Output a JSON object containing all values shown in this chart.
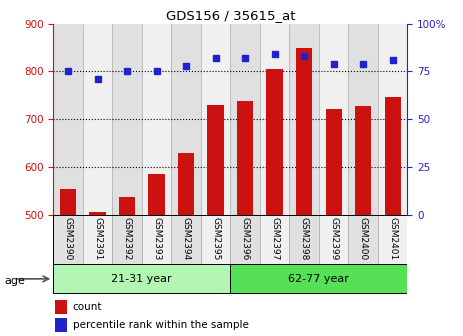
{
  "title": "GDS156 / 35615_at",
  "samples": [
    "GSM2390",
    "GSM2391",
    "GSM2392",
    "GSM2393",
    "GSM2394",
    "GSM2395",
    "GSM2396",
    "GSM2397",
    "GSM2398",
    "GSM2399",
    "GSM2400",
    "GSM2401"
  ],
  "counts": [
    555,
    507,
    537,
    585,
    630,
    730,
    738,
    805,
    848,
    722,
    728,
    746
  ],
  "percentiles": [
    75,
    71,
    75,
    75,
    78,
    82,
    82,
    84,
    83,
    79,
    79,
    81
  ],
  "groups": [
    {
      "label": "21-31 year",
      "start": 0,
      "end": 6
    },
    {
      "label": "62-77 year",
      "start": 6,
      "end": 12
    }
  ],
  "group_color_light": "#b3f5b3",
  "group_color_dark": "#55e055",
  "bar_color": "#cc1111",
  "dot_color": "#2222cc",
  "bar_bottom": 500,
  "ylim_left": [
    500,
    900
  ],
  "ylim_right": [
    0,
    100
  ],
  "yticks_left": [
    500,
    600,
    700,
    800,
    900
  ],
  "yticks_right": [
    0,
    25,
    50,
    75,
    100
  ],
  "yticklabels_right": [
    "0",
    "25",
    "50",
    "75",
    "100%"
  ],
  "grid_vals": [
    600,
    700,
    800
  ],
  "age_label": "age",
  "legend_bar_label": "count",
  "legend_dot_label": "percentile rank within the sample",
  "left_color": "#cc1111",
  "right_color": "#2222cc",
  "col_bg_even": "#e0e0e0",
  "col_bg_odd": "#f0f0f0"
}
